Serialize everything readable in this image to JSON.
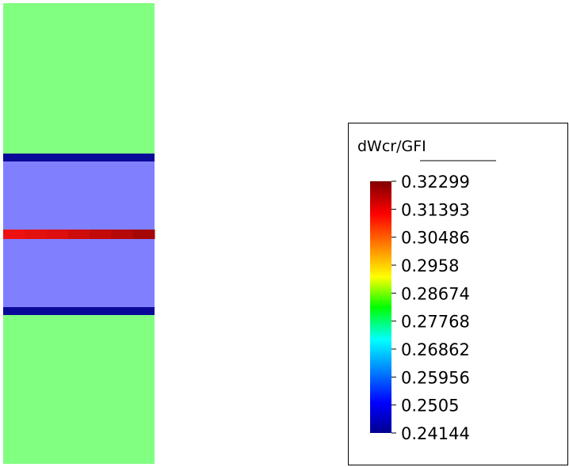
{
  "legend": {
    "title": "dWcr/GFI",
    "ticks": [
      "0.32299",
      "0.31393",
      "0.30486",
      "0.2958",
      "0.28674",
      "0.27768",
      "0.26862",
      "0.25956",
      "0.2505",
      "0.24144"
    ],
    "colormap": "jet",
    "range": [
      0.24144,
      0.32299
    ]
  },
  "contour": {
    "top_region_color": "#80ff80",
    "middle_region_color": "#8080ff",
    "bottom_region_color": "#80ff80",
    "boundary_band_color": "#0a0a99",
    "center_band_colors": [
      "#ee1111",
      "#e31010",
      "#dc0e0e",
      "#cf0c0c",
      "#c30a0a",
      "#b50808",
      "#a50606"
    ]
  }
}
